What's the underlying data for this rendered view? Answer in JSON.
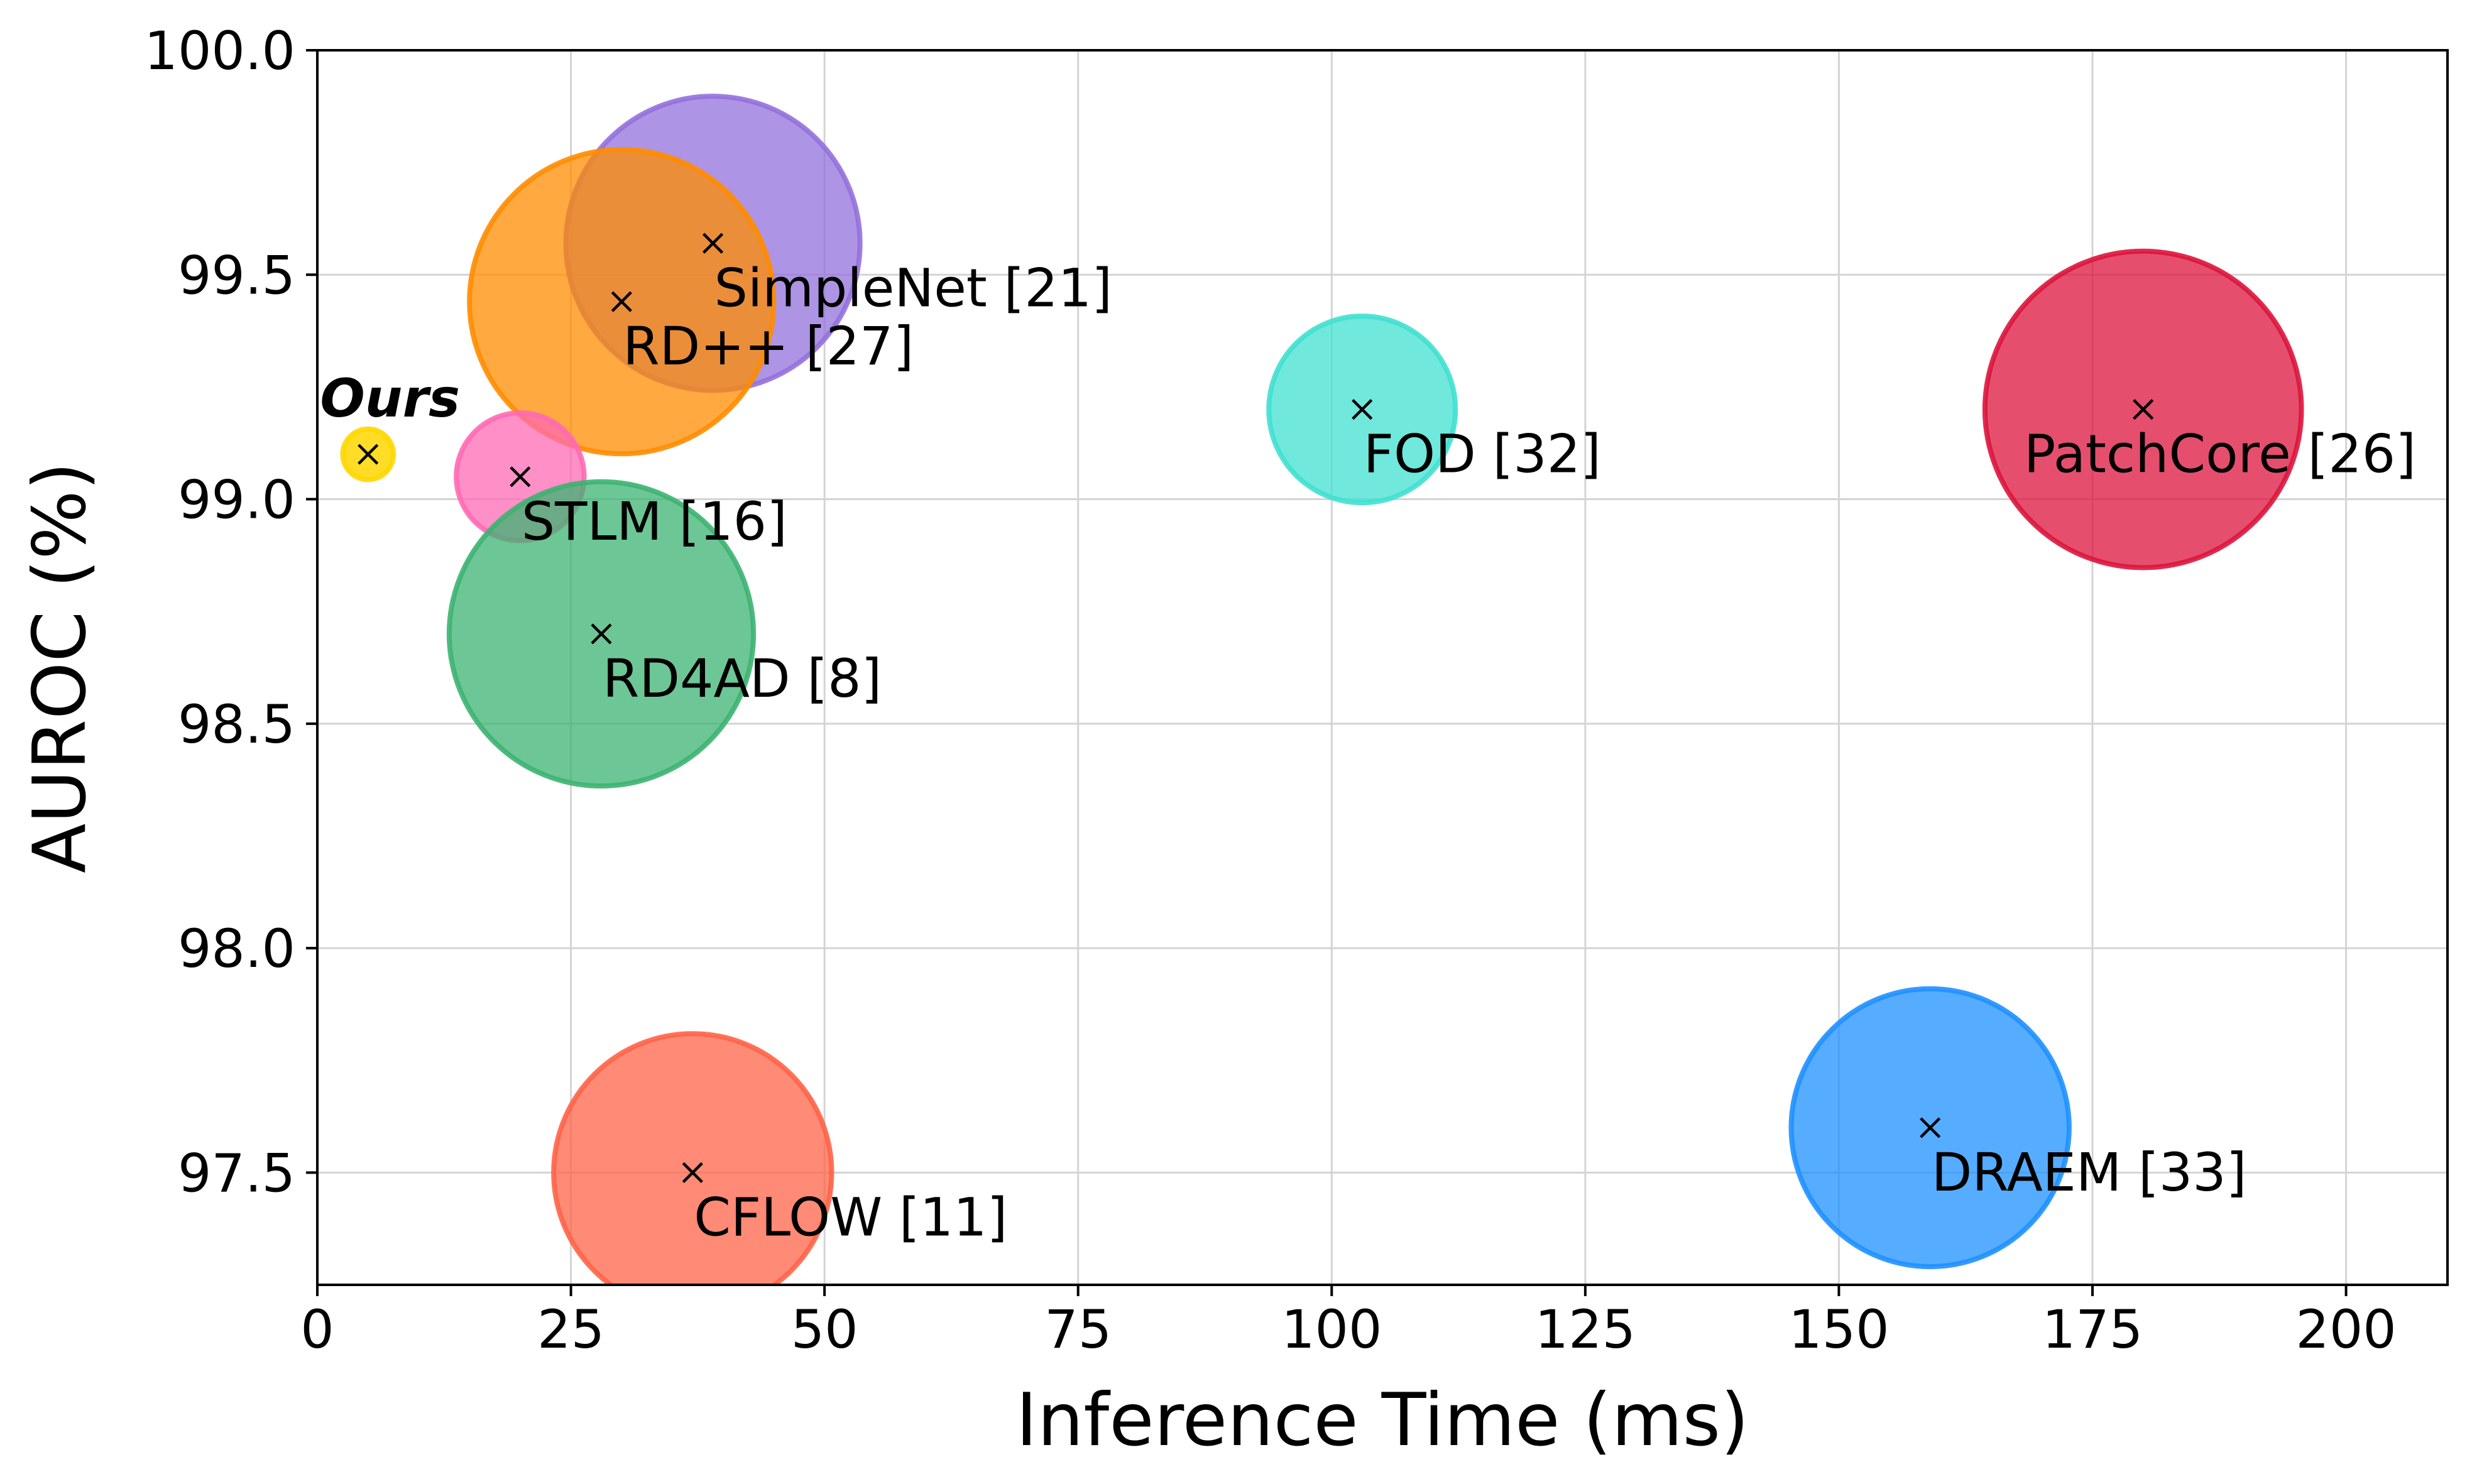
{
  "chart_data": {
    "type": "scatter",
    "title": "",
    "xlabel": "Inference Time (ms)",
    "ylabel": "AUROC (%)",
    "xlim": [
      0,
      210
    ],
    "ylim": [
      97.25,
      100.0
    ],
    "x_ticks": [
      0,
      25,
      50,
      75,
      100,
      125,
      150,
      175,
      200
    ],
    "y_ticks": [
      97.5,
      98.0,
      98.5,
      99.0,
      99.5,
      100.0
    ],
    "x_tick_labels": [
      "0",
      "25",
      "50",
      "75",
      "100",
      "125",
      "150",
      "175",
      "200"
    ],
    "y_tick_labels": [
      "97.5",
      "98.0",
      "98.5",
      "99.0",
      "99.5",
      "100.0"
    ],
    "grid": true,
    "points": [
      {
        "label": "SimpleNet [21]",
        "x": 39,
        "y": 99.57,
        "size": 14.5,
        "color": "#9370DB",
        "alpha": 0.75,
        "label_pos": "below-right"
      },
      {
        "label": "RD++ [27]",
        "x": 30,
        "y": 99.44,
        "size": 15.0,
        "color": "#FF8C00",
        "alpha": 0.75,
        "label_pos": "below-right"
      },
      {
        "label": "Ours",
        "x": 5,
        "y": 99.1,
        "size": 2.5,
        "color": "#FFD700",
        "alpha": 0.85,
        "label_pos": "above",
        "emphasis": true
      },
      {
        "label": "STLM [16]",
        "x": 20,
        "y": 99.05,
        "size": 6.3,
        "color": "#FF69B4",
        "alpha": 0.75,
        "label_pos": "below-right"
      },
      {
        "label": "RD4AD [8]",
        "x": 28,
        "y": 98.7,
        "size": 15.0,
        "color": "#3CB371",
        "alpha": 0.75,
        "label_pos": "below-right"
      },
      {
        "label": "FOD [32]",
        "x": 103,
        "y": 99.2,
        "size": 9.2,
        "color": "#40E0D0",
        "alpha": 0.75,
        "label_pos": "below-right"
      },
      {
        "label": "PatchCore [26]",
        "x": 180,
        "y": 99.2,
        "size": 15.6,
        "color": "#DC143C",
        "alpha": 0.75,
        "label_pos": "below-left"
      },
      {
        "label": "CFLOW [11]",
        "x": 37,
        "y": 97.5,
        "size": 13.7,
        "color": "#FF6347",
        "alpha": 0.75,
        "label_pos": "below-right"
      },
      {
        "label": "DRAEM [33]",
        "x": 159,
        "y": 97.6,
        "size": 13.7,
        "color": "#1E90FF",
        "alpha": 0.75,
        "label_pos": "below-right"
      }
    ]
  }
}
